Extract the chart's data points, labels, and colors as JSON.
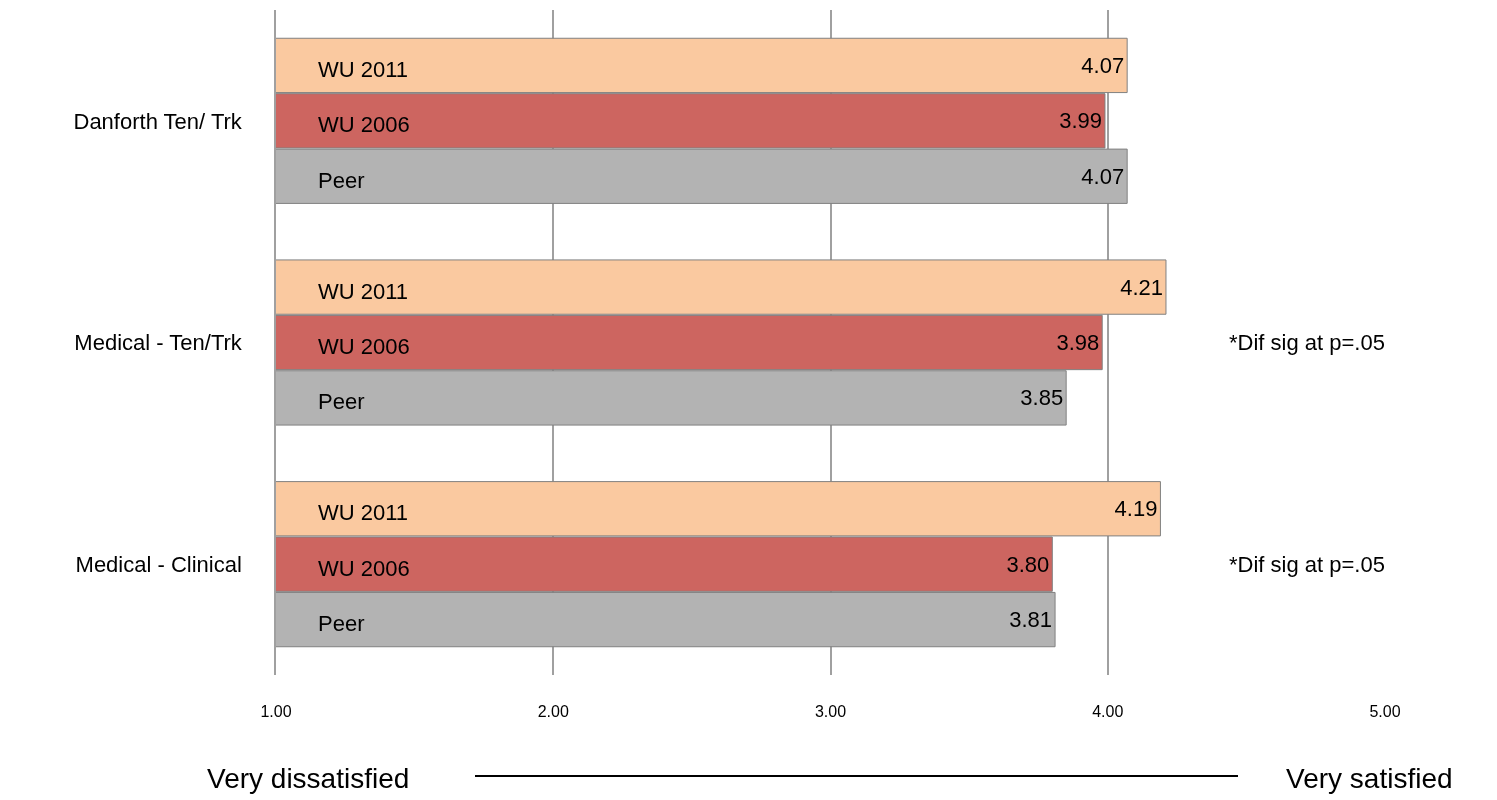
{
  "chart_data": {
    "type": "bar",
    "orientation": "horizontal",
    "categories": [
      "Danforth Ten/ Trk",
      "Medical - Ten/Trk",
      "Medical - Clinical"
    ],
    "series": [
      {
        "name": "WU 2011",
        "color": "#fac9a0",
        "values": [
          4.07,
          4.21,
          4.19
        ],
        "value_labels": [
          "4.07",
          "4.21",
          "4.19"
        ]
      },
      {
        "name": "WU 2006",
        "color": "#cd6560",
        "values": [
          3.99,
          3.98,
          3.8
        ],
        "value_labels": [
          "3.99",
          "3.98",
          "3.80"
        ]
      },
      {
        "name": "Peer",
        "color": "#b3b3b3",
        "values": [
          4.07,
          3.85,
          3.81
        ],
        "value_labels": [
          "4.07",
          "3.85",
          "3.81"
        ]
      }
    ],
    "xlim": [
      1,
      5
    ],
    "xticks": [
      {
        "value": 1,
        "label": "1.00"
      },
      {
        "value": 2,
        "label": "2.00"
      },
      {
        "value": 3,
        "label": "3.00"
      },
      {
        "value": 4,
        "label": "4.00"
      },
      {
        "value": 5,
        "label": "5.00"
      }
    ],
    "grid": "x",
    "legend": false,
    "annotations": [
      "*Dif sig at p=.05",
      "*Dif sig at p=.05",
      "Very dissatisfied",
      "Very satisfied"
    ]
  }
}
